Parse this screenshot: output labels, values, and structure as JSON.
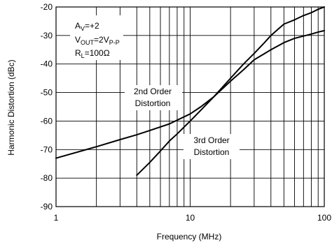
{
  "chart_data": {
    "type": "line",
    "title": "",
    "xlabel": "Frequency (MHz)",
    "ylabel": "Harmonic Distortion (dBc)",
    "x_scale": "log",
    "xlim": [
      1,
      100
    ],
    "ylim": [
      -90,
      -20
    ],
    "grid": true,
    "x_ticks": [
      1,
      10,
      100
    ],
    "x_tick_labels": [
      "1",
      "10",
      "100"
    ],
    "y_ticks": [
      -90,
      -80,
      -70,
      -60,
      -50,
      -40,
      -30,
      -20
    ],
    "y_tick_labels": [
      "-90",
      "-80",
      "-70",
      "-60",
      "-50",
      "-40",
      "-30",
      "-20"
    ],
    "conditions": {
      "av_main": "A",
      "av_sub": "V",
      "av_rest": "=+2",
      "vout_main": "V",
      "vout_sub": "OUT",
      "vout_mid": "=2V",
      "vout_sub2": "P-P",
      "rl_main": "R",
      "rl_sub": "L",
      "rl_rest": "=100Ω"
    },
    "annotations": [
      {
        "line1": "2nd Order",
        "line2": "Distortion"
      },
      {
        "line1": "3rd Order",
        "line2": "Distortion"
      }
    ],
    "series": [
      {
        "x": [
          1,
          2,
          3,
          4,
          5,
          7,
          10,
          12,
          15,
          20,
          25,
          30,
          40,
          50,
          60,
          70,
          80,
          90,
          100
        ],
        "y": [
          -73,
          -69,
          -66.5,
          -64.8,
          -63.3,
          -61,
          -57.5,
          -55,
          -51.5,
          -46,
          -42,
          -38.5,
          -35,
          -32.5,
          -31,
          -30.2,
          -29.5,
          -28.8,
          -28.3
        ]
      },
      {
        "x": [
          4,
          5,
          6,
          7,
          8,
          10,
          12,
          15,
          20,
          25,
          30,
          35,
          40,
          50,
          60,
          70,
          80,
          90,
          100
        ],
        "y": [
          -79,
          -74.5,
          -70.5,
          -67,
          -64.5,
          -60,
          -56.2,
          -51.5,
          -45,
          -40,
          -36.3,
          -33,
          -30,
          -26,
          -24.5,
          -23,
          -22,
          -20.8,
          -20
        ]
      }
    ]
  }
}
